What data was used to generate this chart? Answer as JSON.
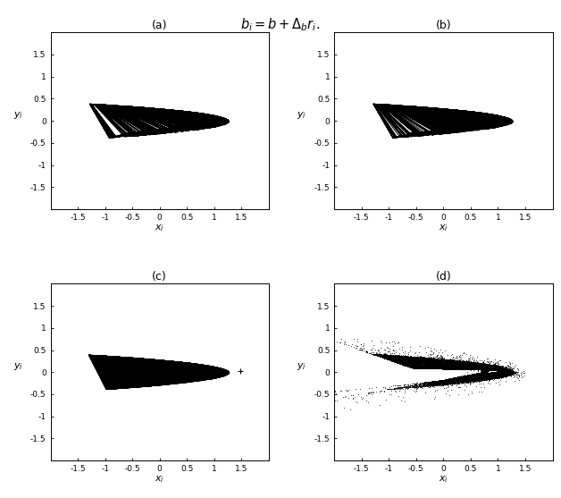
{
  "title_text": "$b_i = b + \\Delta_b r_i.$",
  "subplot_labels": [
    "(a)",
    "(b)",
    "(c)",
    "(d)"
  ],
  "xlim": [
    -2,
    2
  ],
  "ylim": [
    -2,
    2
  ],
  "xticks": [
    -1.5,
    -1.0,
    -0.5,
    0.0,
    0.5,
    1.0,
    1.5
  ],
  "yticks": [
    -1.5,
    -1.0,
    -0.5,
    0.0,
    0.5,
    1.0,
    1.5
  ],
  "xtick_labels": [
    "-1.5",
    "-1",
    "-0.5",
    "0",
    "0.5",
    "1",
    "1.5"
  ],
  "ytick_labels": [
    "-1.5",
    "-1",
    "-0.5",
    "0",
    "0.5",
    "1",
    "1.5"
  ],
  "xlabel": "$x_i$",
  "ylabel": "$y_i$",
  "henon_a": 1.4,
  "henon_b": 0.3,
  "bg_color": "#ffffff",
  "line_color": "#000000",
  "lw_thin": 0.7,
  "lw_medium": 0.8,
  "marker_s": 0.5
}
